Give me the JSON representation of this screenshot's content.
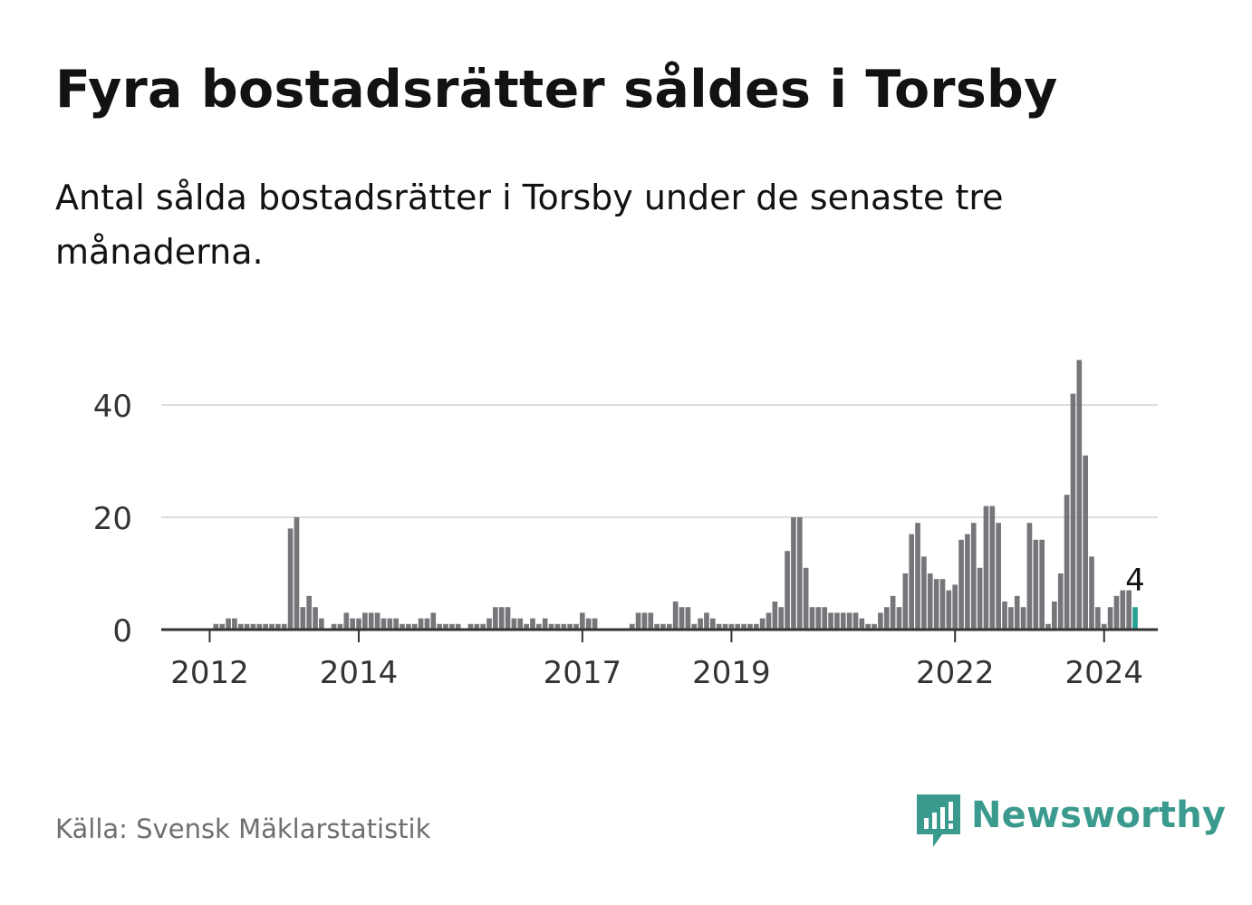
{
  "title": "Fyra bostadsrätter såldes i Torsby",
  "subtitle": "Antal sålda bostadsrätter i Torsby under de senaste tre månaderna.",
  "source": "Källa: Svensk Mäklarstatistik",
  "brand": {
    "name": "Newsworthy",
    "icon": "newsworthy-logo-icon"
  },
  "colors": {
    "bar": "#76757a",
    "highlight": "#2aa197",
    "grid": "#dddddd",
    "axis": "#333333",
    "brand": "#3a9a8d"
  },
  "chart_data": {
    "type": "bar",
    "x_start": 2011.5,
    "step_years": 0.08333,
    "values": [
      0,
      0,
      0,
      0,
      0,
      0,
      0,
      1,
      1,
      2,
      2,
      1,
      1,
      1,
      1,
      1,
      1,
      1,
      1,
      18,
      20,
      4,
      6,
      4,
      2,
      0,
      1,
      1,
      3,
      2,
      2,
      3,
      3,
      3,
      2,
      2,
      2,
      1,
      1,
      1,
      2,
      2,
      3,
      1,
      1,
      1,
      1,
      0,
      1,
      1,
      1,
      2,
      4,
      4,
      4,
      2,
      2,
      1,
      2,
      1,
      2,
      1,
      1,
      1,
      1,
      1,
      3,
      2,
      2,
      0,
      0,
      0,
      0,
      0,
      1,
      3,
      3,
      3,
      1,
      1,
      1,
      5,
      4,
      4,
      1,
      2,
      3,
      2,
      1,
      1,
      1,
      1,
      1,
      1,
      1,
      2,
      3,
      5,
      4,
      14,
      20,
      20,
      11,
      4,
      4,
      4,
      3,
      3,
      3,
      3,
      3,
      2,
      1,
      1,
      3,
      4,
      6,
      4,
      10,
      17,
      19,
      13,
      10,
      9,
      9,
      7,
      8,
      16,
      17,
      19,
      11,
      22,
      22,
      19,
      5,
      4,
      6,
      4,
      19,
      16,
      16,
      1,
      5,
      10,
      24,
      42,
      48,
      31,
      13,
      4,
      1,
      4,
      6,
      7,
      7,
      4
    ],
    "highlight_last": true,
    "last_value_label": "4",
    "ylim": [
      0,
      50
    ],
    "y_ticks": [
      0,
      20,
      40
    ],
    "y_tick_labels": [
      "0",
      "20",
      "40"
    ],
    "x_ticks": [
      2012,
      2014,
      2017,
      2019,
      2022,
      2024
    ],
    "x_tick_labels": [
      "2012",
      "2014",
      "2017",
      "2019",
      "2022",
      "2024"
    ],
    "xlim": [
      2011.35,
      2024.72
    ],
    "xlabel": "",
    "ylabel": ""
  }
}
